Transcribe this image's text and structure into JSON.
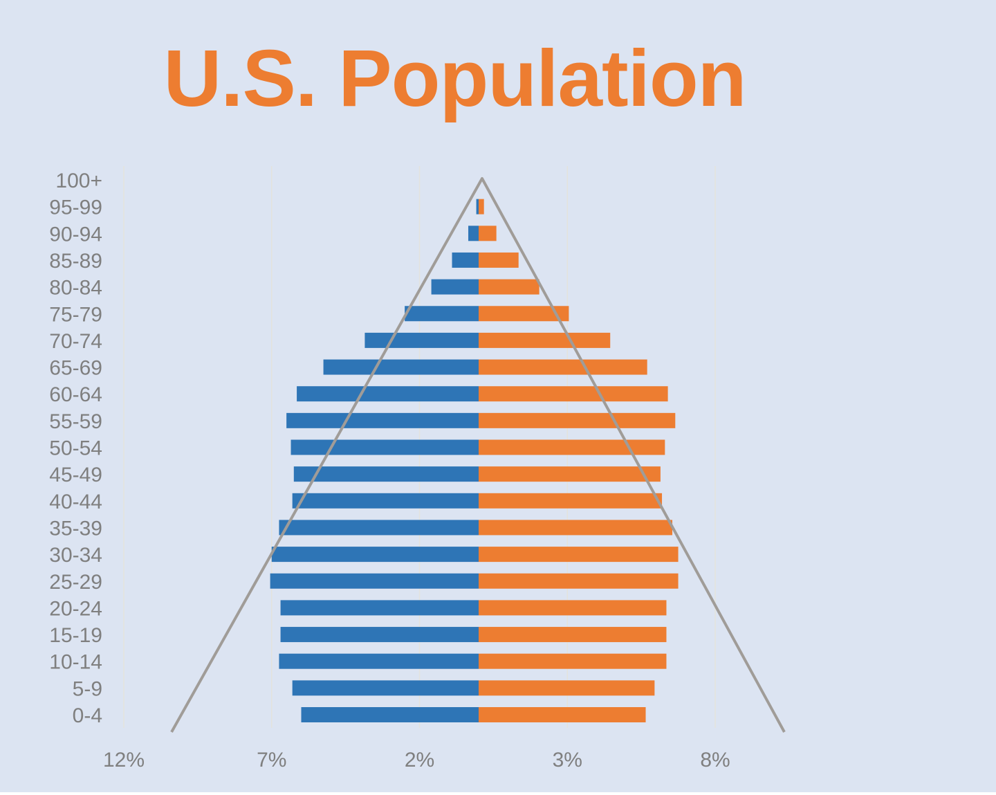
{
  "chart_data": {
    "type": "bar",
    "orientation": "horizontal",
    "title": "U.S. Population",
    "xlabel": "",
    "ylabel": "",
    "categories": [
      "0-4",
      "5-9",
      "10-14",
      "15-19",
      "20-24",
      "25-29",
      "30-34",
      "35-39",
      "40-44",
      "45-49",
      "50-54",
      "55-59",
      "60-64",
      "65-69",
      "70-74",
      "75-79",
      "80-84",
      "85-89",
      "90-94",
      "95-99",
      "100+"
    ],
    "series": [
      {
        "side": "left",
        "color": "#2e75b6",
        "values": [
          6.0,
          6.3,
          6.75,
          6.7,
          6.7,
          7.05,
          7.0,
          6.75,
          6.3,
          6.25,
          6.35,
          6.5,
          6.15,
          5.25,
          3.85,
          2.5,
          1.6,
          0.9,
          0.35,
          0.08,
          0.0
        ]
      },
      {
        "side": "right",
        "color": "#ed7d31",
        "values": [
          5.65,
          5.95,
          6.35,
          6.35,
          6.35,
          6.75,
          6.75,
          6.55,
          6.2,
          6.15,
          6.3,
          6.65,
          6.4,
          5.7,
          4.45,
          3.05,
          2.05,
          1.35,
          0.6,
          0.18,
          0.0
        ]
      }
    ],
    "x_tick_labels": [
      "12%",
      "7%",
      "2%",
      "3%",
      "8%"
    ],
    "xlim": [
      -12,
      10.5
    ],
    "grid": true,
    "legend": "none",
    "overlay": "triangle outline from apex above 100+ to the baseline below 0-4",
    "colors": {
      "left_bar": "#2e75b6",
      "right_bar": "#ed7d31",
      "title": "#ed7d31",
      "overlay": "#a09c98",
      "gridline": "#e3e3dd",
      "tick_text": "#7f7f7f",
      "background": "#dce4f2"
    }
  }
}
